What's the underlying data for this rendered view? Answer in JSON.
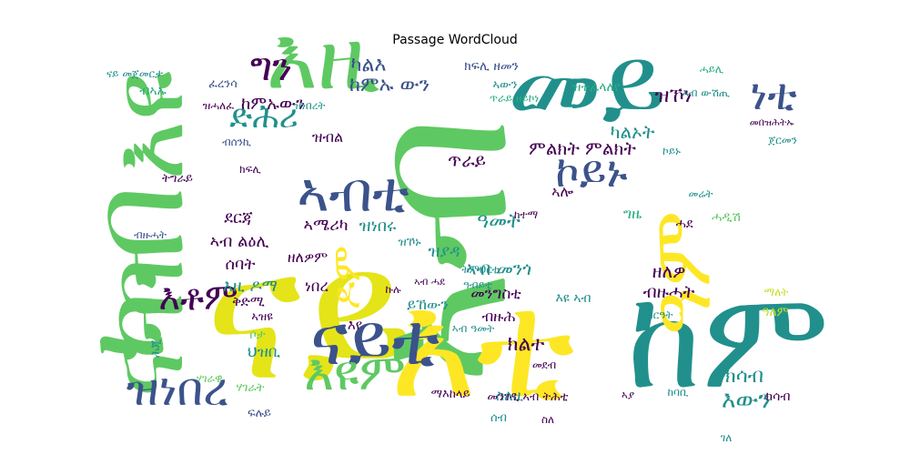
{
  "chart_data": {
    "type": "wordcloud",
    "title": "Passage WordCloud",
    "palette": [
      "#440154",
      "#3b528b",
      "#21908c",
      "#27ad81",
      "#5ec962",
      "#c2df23",
      "#fde725"
    ],
    "words": [
      {
        "text": "ናይ",
        "weight": 1.0,
        "color": "#e4e419"
      },
      {
        "text": "ኣብ",
        "weight": 0.93,
        "color": "#5ec962"
      },
      {
        "text": "እዩ",
        "weight": 0.7,
        "color": "#5ec962"
      },
      {
        "text": "ከም",
        "weight": 0.66,
        "color": "#21908c"
      },
      {
        "text": "እዚ",
        "weight": 0.6,
        "color": "#5ec962"
      },
      {
        "text": "እቲ",
        "weight": 0.62,
        "color": "#fde725"
      },
      {
        "text": "መይ",
        "weight": 0.5,
        "color": "#21908c"
      },
      {
        "text": "ናይቲ",
        "weight": 0.42,
        "color": "#3b528b"
      },
      {
        "text": "ካብ",
        "weight": 0.48,
        "color": "#5ec962"
      },
      {
        "text": "ናብ",
        "weight": 0.45,
        "color": "#5ec962"
      },
      {
        "text": "ኣብቲ",
        "weight": 0.3,
        "color": "#3b528b"
      },
      {
        "text": "ኮይኑ",
        "weight": 0.28,
        "color": "#3b528b"
      },
      {
        "text": "እዩም",
        "weight": 0.26,
        "color": "#5ec962"
      },
      {
        "text": "ዝነበረ",
        "weight": 0.25,
        "color": "#3b528b"
      },
      {
        "text": "እቶም",
        "weight": 0.22,
        "color": "#440154"
      },
      {
        "text": "ነቲ",
        "weight": 0.22,
        "color": "#3b528b"
      },
      {
        "text": "ግን",
        "weight": 0.2,
        "color": "#440154"
      },
      {
        "text": "ድሕሪ",
        "weight": 0.17,
        "color": "#21908c"
      },
      {
        "text": "ዓም",
        "weight": 0.2,
        "color": "#fde725"
      },
      {
        "text": "ዶም",
        "weight": 0.24,
        "color": "#fde725"
      },
      {
        "text": "ካልእ",
        "weight": 0.12,
        "color": "#3b528b"
      },
      {
        "text": "ከምኡ ውን",
        "weight": 0.1,
        "color": "#3b528b"
      },
      {
        "text": "ካልኦት",
        "weight": 0.11,
        "color": "#21908c"
      },
      {
        "text": "ምልክት ምልክት",
        "weight": 0.12,
        "color": "#440154"
      },
      {
        "text": "እውን",
        "weight": 0.12,
        "color": "#21908c"
      },
      {
        "text": "ክሳብ",
        "weight": 0.11,
        "color": "#21908c"
      },
      {
        "text": "ክልተ",
        "weight": 0.1,
        "color": "#440154"
      },
      {
        "text": "ጥራይ",
        "weight": 0.09,
        "color": "#440154"
      },
      {
        "text": "ከምኡውን",
        "weight": 0.1,
        "color": "#440154"
      },
      {
        "text": "ዓመት",
        "weight": 0.09,
        "color": "#21908c"
      },
      {
        "text": "ዝኾነ",
        "weight": 0.09,
        "color": "#440154"
      },
      {
        "text": "ኣሎ",
        "weight": 0.08,
        "color": "#440154"
      },
      {
        "text": "ኣብ መንጎ",
        "weight": 0.08,
        "color": "#21908c"
      },
      {
        "text": "ዘለዎ",
        "weight": 0.08,
        "color": "#440154"
      },
      {
        "text": "ብዙሓት",
        "weight": 0.08,
        "color": "#440154"
      },
      {
        "text": "ደርጃ",
        "weight": 0.07,
        "color": "#440154"
      },
      {
        "text": "ኣብ ልዕሊ",
        "weight": 0.08,
        "color": "#440154"
      },
      {
        "text": "ሰባት",
        "weight": 0.07,
        "color": "#440154"
      },
      {
        "text": "ኣሜሪካ",
        "weight": 0.07,
        "color": "#440154"
      },
      {
        "text": "ዝነበሩ",
        "weight": 0.07,
        "color": "#21908c"
      },
      {
        "text": "እዚ ዶማ",
        "weight": 0.07,
        "color": "#21908c"
      },
      {
        "text": "ዘለዎም",
        "weight": 0.06,
        "color": "#440154"
      },
      {
        "text": "ቅድሚ",
        "weight": 0.06,
        "color": "#440154"
      },
      {
        "text": "ነበረ",
        "weight": 0.06,
        "color": "#440154"
      },
      {
        "text": "መንግስቲ",
        "weight": 0.07,
        "color": "#440154"
      },
      {
        "text": "ብዙሕ",
        "weight": 0.06,
        "color": "#440154"
      },
      {
        "text": "ዝያዳ",
        "weight": 0.06,
        "color": "#21908c"
      },
      {
        "text": "ይኸውን",
        "weight": 0.06,
        "color": "#21908c"
      },
      {
        "text": "ዝተፈላለየ",
        "weight": 0.06,
        "color": "#27ad81"
      },
      {
        "text": "ዝብል",
        "weight": 0.06,
        "color": "#440154"
      },
      {
        "text": "ግዜ",
        "weight": 0.06,
        "color": "#27ad81"
      },
      {
        "text": "ዓለም",
        "weight": 0.05,
        "color": "#c2df23"
      },
      {
        "text": "ህዝቢ",
        "weight": 0.05,
        "color": "#21908c"
      },
      {
        "text": "እየ",
        "weight": 0.05,
        "color": "#440154"
      },
      {
        "text": "ጥራይ ዘይኮነ",
        "weight": 0.04,
        "color": "#27ad81"
      },
      {
        "text": "ስለዚ",
        "weight": 0.04,
        "color": "#21908c"
      },
      {
        "text": "ሓደ",
        "weight": 0.04,
        "color": "#440154"
      },
      {
        "text": "ሓዲሽ",
        "weight": 0.04,
        "color": "#5ec962"
      },
      {
        "text": "ኮይኑ",
        "weight": 0.04,
        "color": "#21908c"
      },
      {
        "text": "ኣብ ውሽጢ",
        "weight": 0.04,
        "color": "#21908c"
      },
      {
        "text": "ክፍሊ ዘመን",
        "weight": 0.04,
        "color": "#3b528b"
      },
      {
        "text": "ዝነበረት",
        "weight": 0.04,
        "color": "#21908c"
      },
      {
        "text": "ክሳብ",
        "weight": 0.04,
        "color": "#440154"
      },
      {
        "text": "ዝሓለፈ",
        "weight": 0.04,
        "color": "#440154"
      },
      {
        "text": "ሰብ",
        "weight": 0.04,
        "color": "#21908c"
      },
      {
        "text": "ፈረንሳ",
        "weight": 0.03,
        "color": "#3b528b"
      },
      {
        "text": "ብኣኡ",
        "weight": 0.03,
        "color": "#27ad81"
      },
      {
        "text": "ትግራይ",
        "weight": 0.03,
        "color": "#440154"
      },
      {
        "text": "ክፍሊ",
        "weight": 0.03,
        "color": "#440154"
      },
      {
        "text": "ኩሉ",
        "weight": 0.03,
        "color": "#440154"
      },
      {
        "text": "ማለት",
        "weight": 0.03,
        "color": "#c2df23"
      },
      {
        "text": "ብዙሓት",
        "weight": 0.03,
        "color": "#3b528b"
      },
      {
        "text": "እዩ ኣብ",
        "weight": 0.03,
        "color": "#21908c"
      },
      {
        "text": "ከባቢ",
        "weight": 0.03,
        "color": "#21908c"
      },
      {
        "text": "ገለ",
        "weight": 0.03,
        "color": "#21908c"
      },
      {
        "text": "ማእከላይ",
        "weight": 0.03,
        "color": "#440154"
      },
      {
        "text": "መንገዲ ኣብ ትሕቲ",
        "weight": 0.03,
        "color": "#440154"
      },
      {
        "text": "ኣያ",
        "weight": 0.03,
        "color": "#440154"
      },
      {
        "text": "ስለ",
        "weight": 0.03,
        "color": "#440154"
      },
      {
        "text": "መደብ",
        "weight": 0.03,
        "color": "#440154"
      },
      {
        "text": "ኣብ ሓደ",
        "weight": 0.03,
        "color": "#440154"
      },
      {
        "text": "ሃገራት",
        "weight": 0.03,
        "color": "#5ec962"
      },
      {
        "text": "ኣዝዩ",
        "weight": 0.03,
        "color": "#440154"
      },
      {
        "text": "ፍሉይ",
        "weight": 0.03,
        "color": "#3b528b"
      },
      {
        "text": "ሃገራዊ",
        "weight": 0.03,
        "color": "#5ec962"
      },
      {
        "text": "ቦታ",
        "weight": 0.03,
        "color": "#5ec962"
      },
      {
        "text": "ስርዓት",
        "weight": 0.03,
        "color": "#21908c"
      },
      {
        "text": "መሬት",
        "weight": 0.03,
        "color": "#21908c"
      },
      {
        "text": "ኣብ ዓመት",
        "weight": 0.03,
        "color": "#21908c"
      },
      {
        "text": "ዓብይቲ",
        "weight": 0.03,
        "color": "#21908c"
      },
      {
        "text": "ትምህርቲ",
        "weight": 0.03,
        "color": "#21908c"
      },
      {
        "text": "ዝኾኑ",
        "weight": 0.03,
        "color": "#21908c"
      },
      {
        "text": "ከተማ",
        "weight": 0.03,
        "color": "#440154"
      },
      {
        "text": "ብሰንኪ",
        "weight": 0.03,
        "color": "#3b528b"
      },
      {
        "text": "ናይ መጀመርታ",
        "weight": 0.03,
        "color": "#21908c"
      },
      {
        "text": "ሕጂ",
        "weight": 0.03,
        "color": "#21908c"
      },
      {
        "text": "ጀርመን",
        "weight": 0.03,
        "color": "#21908c"
      },
      {
        "text": "ኣውን",
        "weight": 0.03,
        "color": "#21908c"
      },
      {
        "text": "ሓይሊ",
        "weight": 0.03,
        "color": "#27ad81"
      },
      {
        "text": "መበዝሕትኡ",
        "weight": 0.03,
        "color": "#440154"
      }
    ]
  }
}
